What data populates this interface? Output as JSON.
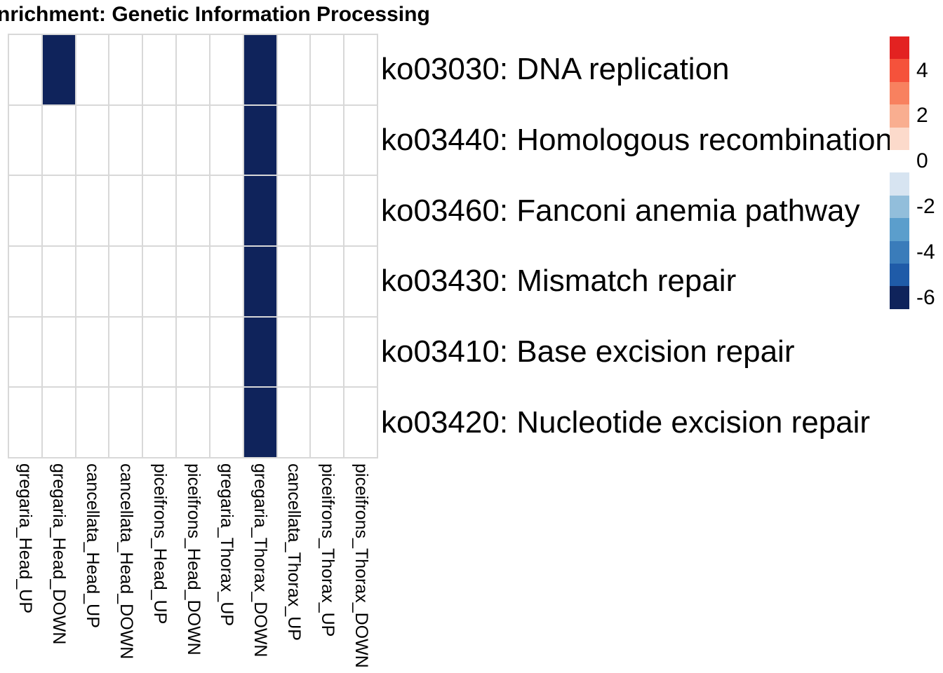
{
  "title": "nrichment: Genetic Information Processing",
  "chart_data": {
    "type": "heatmap",
    "title": "nrichment: Genetic Information Processing",
    "columns": [
      "gregaria_Head_UP",
      "gregaria_Head_DOWN",
      "cancellata_Head_UP",
      "cancellata_Head_DOWN",
      "piceifrons_Head_UP",
      "piceifrons_Head_DOWN",
      "gregaria_Thorax_UP",
      "gregaria_Thorax_DOWN",
      "cancellata_Thorax_UP",
      "piceifrons_Thorax_UP",
      "piceifrons_Thorax_DOWN"
    ],
    "rows": [
      "ko03030: DNA replication",
      "ko03440: Homologous recombination",
      "ko03460: Fanconi anemia pathway",
      "ko03430: Mismatch repair",
      "ko03410: Base excision repair",
      "ko03420: Nucleotide excision repair"
    ],
    "cells": [
      [
        null,
        -6,
        null,
        null,
        null,
        null,
        null,
        -6,
        null,
        null,
        null
      ],
      [
        null,
        null,
        null,
        null,
        null,
        null,
        null,
        -6,
        null,
        null,
        null
      ],
      [
        null,
        null,
        null,
        null,
        null,
        null,
        null,
        -6,
        null,
        null,
        null
      ],
      [
        null,
        null,
        null,
        null,
        null,
        null,
        null,
        -6,
        null,
        null,
        null
      ],
      [
        null,
        null,
        null,
        null,
        null,
        null,
        null,
        -6,
        null,
        null,
        null
      ],
      [
        null,
        null,
        null,
        null,
        null,
        null,
        null,
        -6,
        null,
        null,
        null
      ]
    ],
    "empty_cell_color": "#ffffff",
    "filled_cell_color": "#0f235b",
    "grid_line_color": "#d8d8d8",
    "legend": {
      "position": "right",
      "tick_labels": [
        "4",
        "2",
        "0",
        "-2",
        "-4",
        "-6"
      ],
      "tick_values": [
        4,
        2,
        0,
        -2,
        -4,
        -6
      ],
      "segment_values": [
        5,
        4,
        3,
        2,
        1,
        0,
        -1,
        -2,
        -3,
        -4,
        -5,
        -6
      ],
      "segment_colors": [
        "#e32221",
        "#f5523b",
        "#f8815f",
        "#f9ae90",
        "#fcdacb",
        "#ffffff",
        "#d7e4f1",
        "#92bedb",
        "#5b9ecc",
        "#3a7cba",
        "#1f5ba8",
        "#0f235b"
      ]
    }
  }
}
